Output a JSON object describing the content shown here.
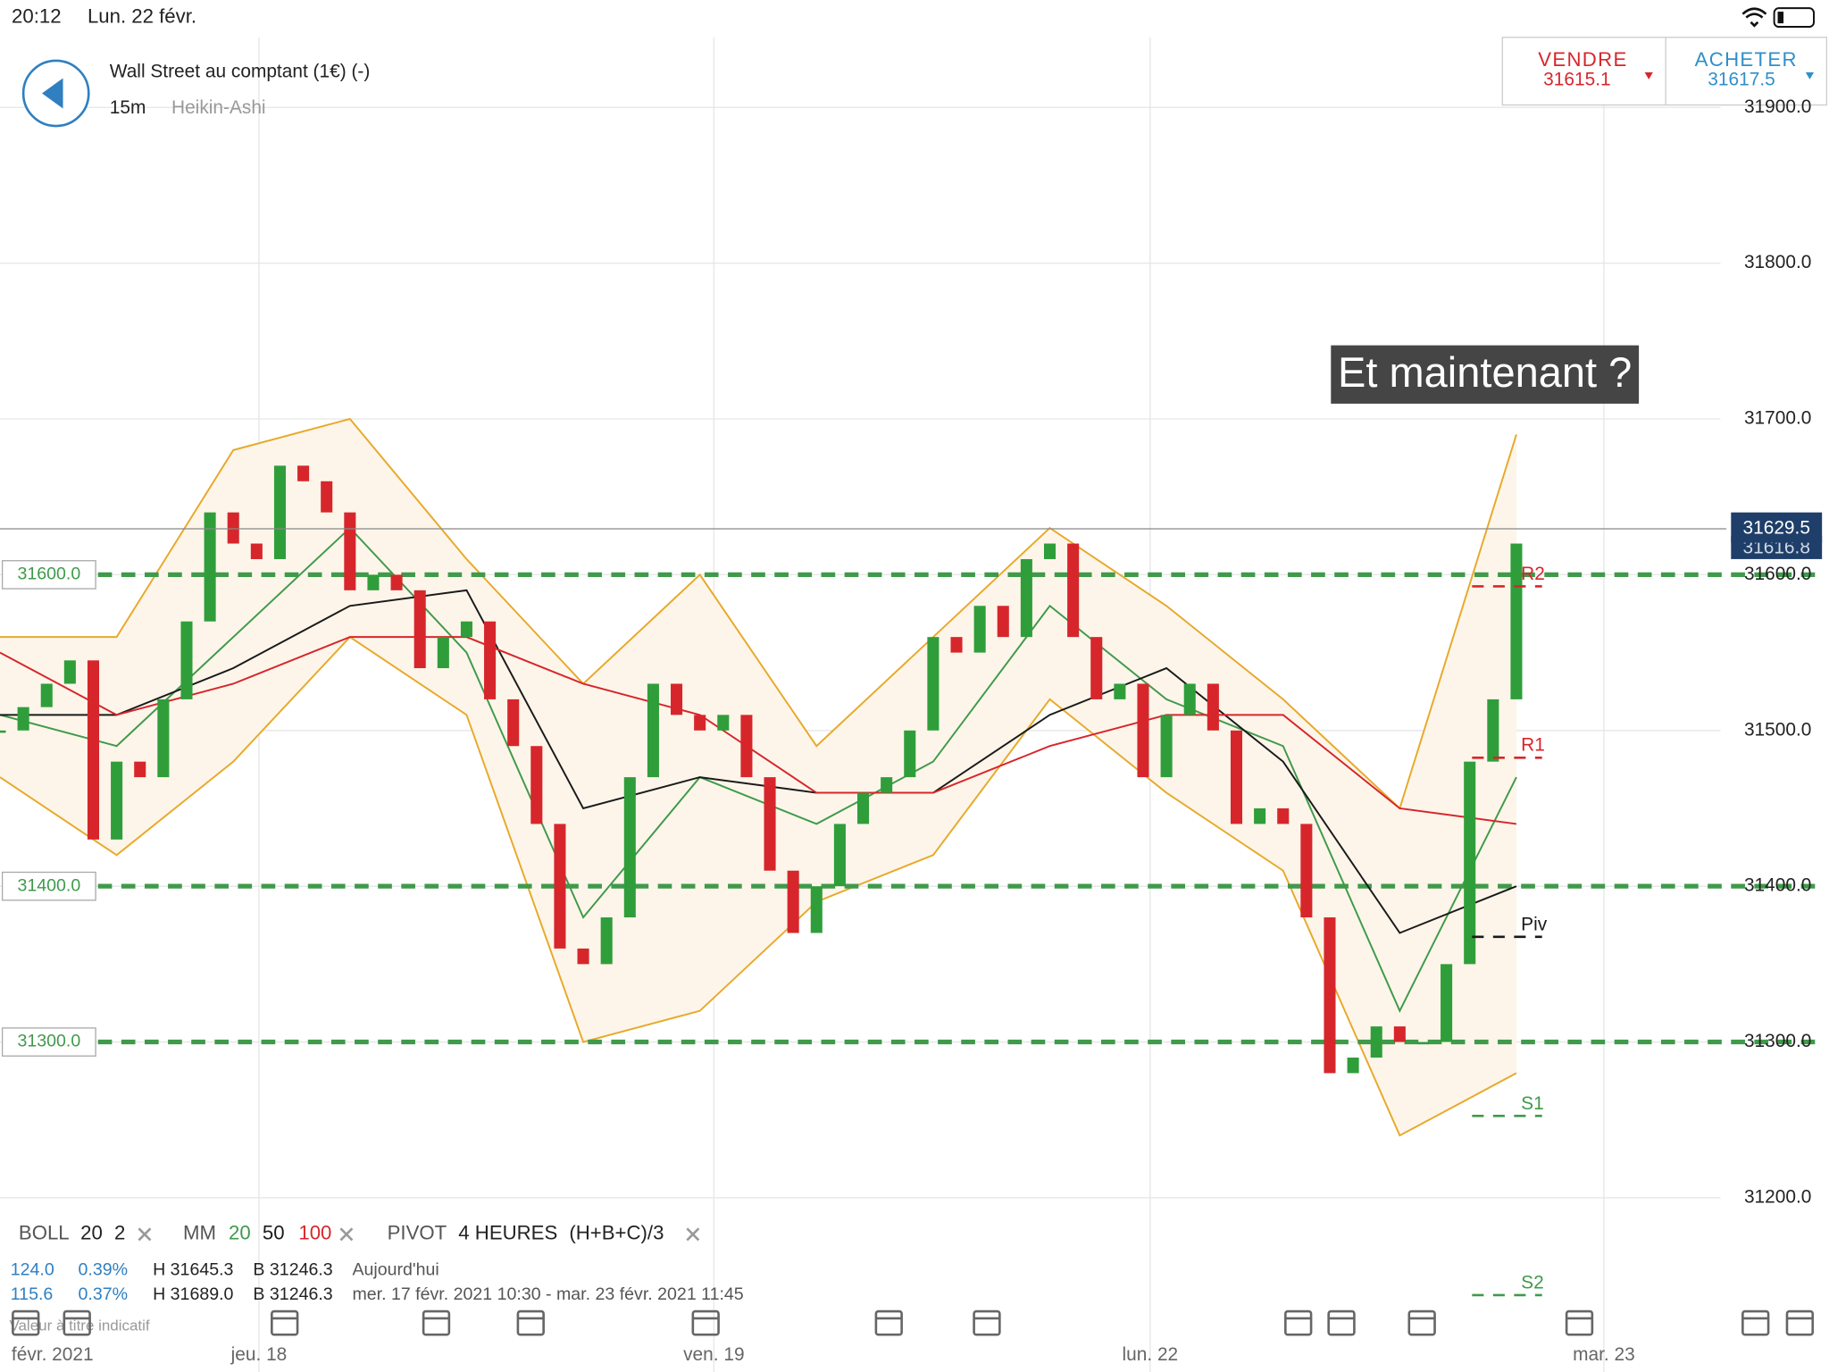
{
  "status_bar": {
    "time": "20:12",
    "date": "Lun. 22 févr."
  },
  "header": {
    "instrument": "Wall Street au comptant (1€) (-)",
    "timeframe": "15m",
    "chart_style": "Heikin-Ashi",
    "sell": {
      "label": "VENDRE",
      "price": "31615.1"
    },
    "buy": {
      "label": "ACHETER",
      "price": "31617.5"
    }
  },
  "chart_data": {
    "type": "candlestick",
    "annotation": "Et maintenant ?",
    "x": [
      0,
      1,
      2,
      3,
      4,
      5,
      6,
      7,
      8,
      9,
      10,
      11,
      12,
      13,
      14,
      15,
      16,
      17,
      18,
      19,
      20,
      21,
      22,
      23,
      24,
      25,
      26,
      27,
      28,
      29,
      30,
      31,
      32,
      33,
      34,
      35,
      36,
      37,
      38,
      39,
      40,
      41,
      42,
      43,
      44,
      45,
      46,
      47,
      48,
      49,
      50,
      51,
      52,
      53,
      54,
      55,
      56,
      57,
      58,
      59,
      60,
      61,
      62,
      63,
      64,
      65
    ],
    "close": [
      31500,
      31515,
      31530,
      31545,
      31430,
      31480,
      31470,
      31520,
      31570,
      31640,
      31620,
      31610,
      31670,
      31660,
      31640,
      31590,
      31600,
      31590,
      31540,
      31560,
      31570,
      31520,
      31490,
      31440,
      31360,
      31350,
      31380,
      31470,
      31530,
      31510,
      31500,
      31510,
      31470,
      31410,
      31370,
      31400,
      31440,
      31460,
      31470,
      31500,
      31560,
      31550,
      31580,
      31560,
      31610,
      31620,
      31560,
      31520,
      31530,
      31470,
      31510,
      31530,
      31500,
      31440,
      31450,
      31440,
      31380,
      31280,
      31290,
      31310,
      31300,
      31300,
      31350,
      31480,
      31520,
      31620
    ],
    "color_up": "#2f9e3a",
    "color_down": "#d7262b",
    "bands": {
      "color": "#e8a92a",
      "fill": "#fdf5ea",
      "x": [
        0,
        5,
        10,
        15,
        20,
        25,
        30,
        35,
        40,
        45,
        50,
        55,
        60,
        65
      ],
      "upper": [
        31560,
        31560,
        31680,
        31700,
        31610,
        31530,
        31600,
        31490,
        31560,
        31630,
        31580,
        31520,
        31450,
        31690
      ],
      "lower": [
        31470,
        31420,
        31480,
        31560,
        31510,
        31300,
        31320,
        31390,
        31420,
        31520,
        31460,
        31410,
        31240,
        31280
      ]
    },
    "series": [
      {
        "name": "20",
        "color": "#3f9a4a",
        "x": [
          0,
          5,
          10,
          15,
          20,
          25,
          30,
          35,
          40,
          45,
          50,
          55,
          60,
          65
        ],
        "values": [
          31510,
          31490,
          31560,
          31630,
          31550,
          31380,
          31470,
          31440,
          31480,
          31580,
          31520,
          31490,
          31320,
          31470
        ]
      },
      {
        "name": "50",
        "color": "#1a1a1a",
        "x": [
          0,
          5,
          10,
          15,
          20,
          25,
          30,
          35,
          40,
          45,
          50,
          55,
          60,
          65
        ],
        "values": [
          31510,
          31510,
          31540,
          31580,
          31590,
          31450,
          31470,
          31460,
          31460,
          31510,
          31540,
          31480,
          31370,
          31400
        ]
      },
      {
        "name": "100",
        "color": "#d7262b",
        "x": [
          0,
          5,
          10,
          15,
          20,
          25,
          30,
          35,
          40,
          45,
          50,
          55,
          60,
          65
        ],
        "values": [
          31550,
          31510,
          31530,
          31560,
          31560,
          31530,
          31510,
          31460,
          31460,
          31490,
          31510,
          31510,
          31450,
          31440
        ]
      }
    ],
    "levels": [
      {
        "value": 31600,
        "label": "31600.0"
      },
      {
        "value": 31400,
        "label": "31400.0"
      },
      {
        "value": 31300,
        "label": "31300.0"
      }
    ],
    "level_color": "#3f9a4a",
    "pivots": [
      {
        "label": "R2",
        "value": 31600,
        "color": "#d7262b"
      },
      {
        "label": "R1",
        "value": 31490,
        "color": "#d7262b"
      },
      {
        "label": "Piv",
        "value": 31375,
        "color": "#1a1a1a"
      },
      {
        "label": "S1",
        "value": 31260,
        "color": "#3f9a4a"
      },
      {
        "label": "S2",
        "value": 31145,
        "color": "#3f9a4a"
      }
    ],
    "last_price": 31629.5,
    "last_price_hidden": 31616.8,
    "xlim": [
      0,
      78.4
    ],
    "ylim": [
      31190,
      31945
    ],
    "xticks": [
      {
        "value": 2.25,
        "label": "févr. 2021"
      },
      {
        "value": 11.1,
        "label": "jeu. 18"
      },
      {
        "value": 30.6,
        "label": "ven. 19"
      },
      {
        "value": 49.3,
        "label": "lun. 22"
      },
      {
        "value": 68.75,
        "label": "mar. 23"
      }
    ],
    "yticks": [
      {
        "value": 31200,
        "label": "31200.0"
      },
      {
        "value": 31300,
        "label": "31300.0"
      },
      {
        "value": 31400,
        "label": "31400.0"
      },
      {
        "value": 31500,
        "label": "31500.0"
      },
      {
        "value": 31600,
        "label": "31600.0"
      },
      {
        "value": 31700,
        "label": "31700.0"
      },
      {
        "value": 31800,
        "label": "31800.0"
      },
      {
        "value": 31900,
        "label": "31900.0"
      }
    ],
    "grid": true
  },
  "indicators": {
    "boll": {
      "name": "BOLL",
      "period": "20",
      "deviation": "2"
    },
    "mm": {
      "name": "MM"
    },
    "pivot": {
      "name": "PIVOT",
      "period": "4 HEURES",
      "formula": "(H+B+C)/3"
    }
  },
  "stats": [
    {
      "range": "124.0",
      "percent": "0.39%",
      "high": "H 31645.3",
      "low": "B 31246.3",
      "period": "Aujourd'hui"
    },
    {
      "range": "115.6",
      "percent": "0.37%",
      "high": "H 31689.0",
      "low": "B 31246.3",
      "period": "mer. 17 févr. 2021 10:30 - mar. 23 févr. 2021 11:45"
    }
  ],
  "disclaimer": "Valeur à titre indicatif"
}
